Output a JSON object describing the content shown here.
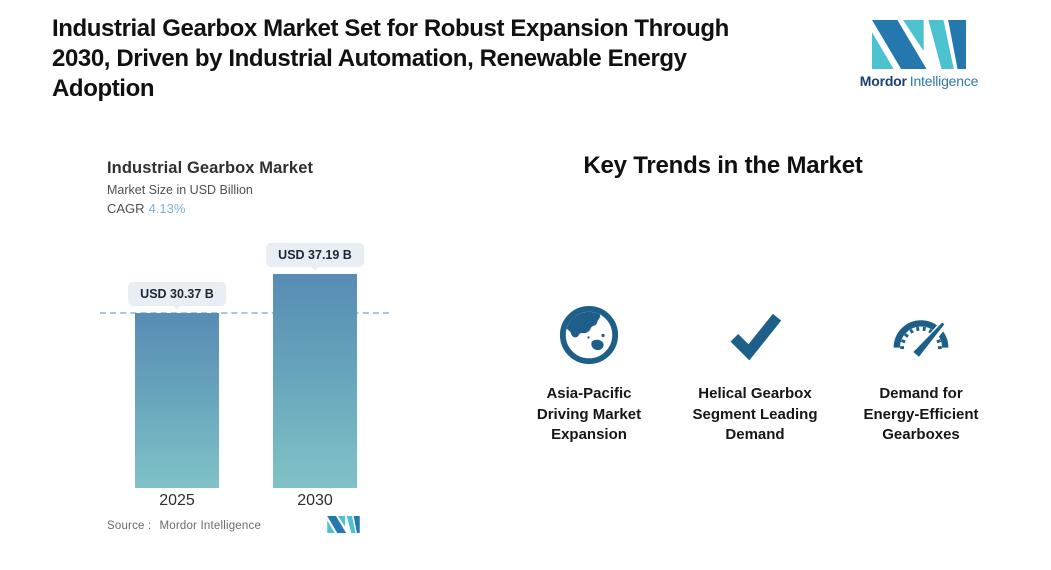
{
  "header": {
    "title": "Industrial Gearbox Market Set for Robust Expansion Through\n2030, Driven by Industrial Automation, Renewable Energy\nAdoption"
  },
  "brand": {
    "name_bold": "Mordor",
    "name_light": "Intelligence"
  },
  "chart": {
    "title": "Industrial Gearbox Market",
    "subtitle": "Market Size in USD Billion",
    "cagr_label": "CAGR",
    "cagr_value": "4.13%",
    "source_label": "Source :",
    "source_value": "Mordor Intelligence"
  },
  "chart_data": {
    "type": "bar",
    "title": "Industrial Gearbox Market",
    "ylabel": "Market Size in USD Billion",
    "cagr_percent": 4.13,
    "categories": [
      "2025",
      "2030"
    ],
    "values": [
      30.37,
      37.19
    ],
    "bar_labels": [
      "USD 30.37 B",
      "USD 37.19 B"
    ],
    "baseline": {
      "value": 30.37,
      "style": "dashed"
    },
    "ylim": [
      0,
      40
    ],
    "legend": "none",
    "grid": "off",
    "colors": {
      "bar_gradient_top": "#578cb4",
      "bar_gradient_bottom": "#80c2c7",
      "dashed_line": "#a5c8e0",
      "badge_bg": "#e8eef3",
      "cagr_value": "#79b1d6"
    }
  },
  "trends": {
    "heading": "Key Trends in the Market",
    "items": [
      {
        "icon": "globe-asia-icon",
        "label": "Asia-Pacific\nDriving Market\nExpansion"
      },
      {
        "icon": "checkmark-icon",
        "label": "Helical Gearbox\nSegment Leading\nDemand"
      },
      {
        "icon": "gauge-icon",
        "label": "Demand for\nEnergy-Efficient\nGearboxes"
      }
    ]
  },
  "colors": {
    "brand_teal": "#4cc2cf",
    "brand_blue": "#2478ae",
    "icon_blue": "#1e5f89"
  }
}
